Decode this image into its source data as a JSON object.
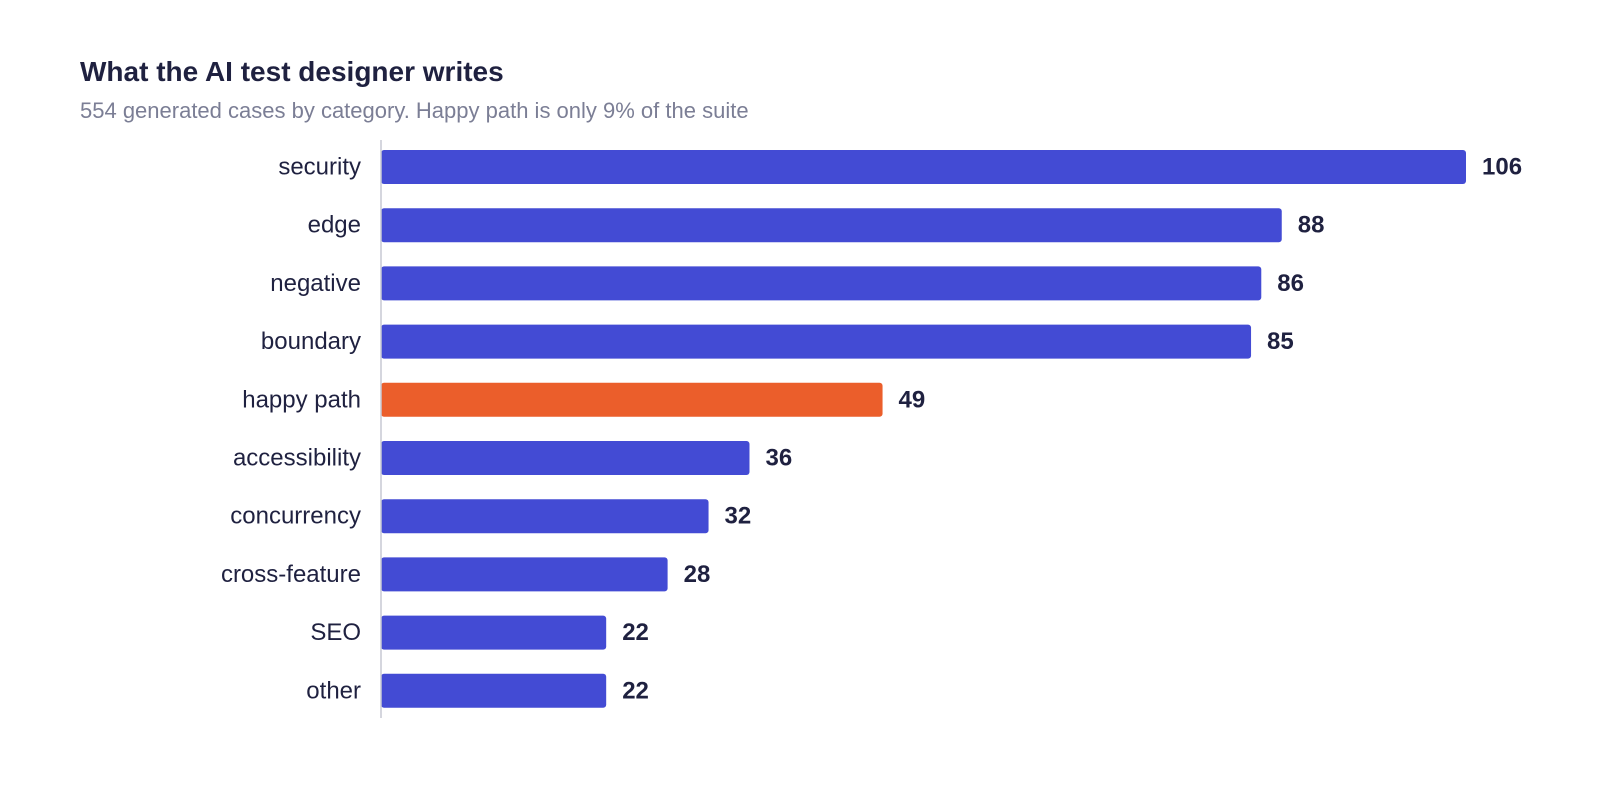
{
  "chart_data": {
    "type": "bar",
    "orientation": "horizontal",
    "title": "What the AI test designer writes",
    "subtitle": "554 generated cases by category. Happy path is only 9% of the suite",
    "categories": [
      "security",
      "edge",
      "negative",
      "boundary",
      "happy path",
      "accessibility",
      "concurrency",
      "cross-feature",
      "SEO",
      "other"
    ],
    "values": [
      106,
      88,
      86,
      85,
      49,
      36,
      32,
      28,
      22,
      22
    ],
    "xlim": [
      0,
      106
    ],
    "grid": false,
    "legend": "none",
    "highlight_category": "happy path",
    "colors": {
      "bar": "#434bd4",
      "highlight": "#eb5e2b",
      "axis": "#c7c9d4",
      "text": "#1f2140",
      "subtitle": "#7b7e95"
    }
  }
}
